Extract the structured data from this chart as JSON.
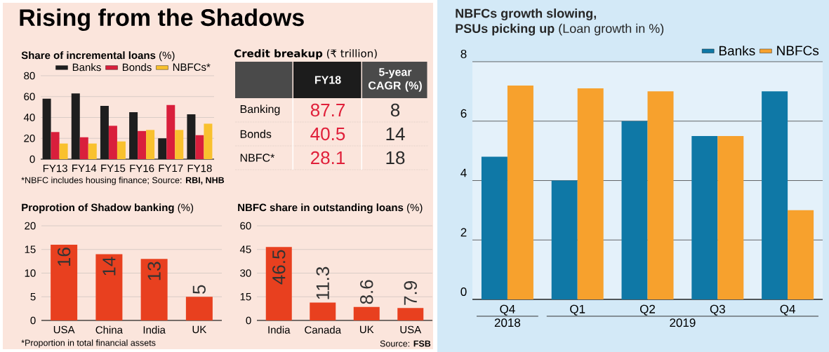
{
  "chart_data": [
    {
      "type": "bar",
      "title": "Rising from the Shadows",
      "subtitle": "**Share of incremental loans** (%)",
      "categories": [
        "FY13",
        "FY14",
        "FY15",
        "FY16",
        "FY17",
        "FY18"
      ],
      "series": [
        {
          "name": "Banks",
          "color": "#1e1e1e",
          "values": [
            58,
            63,
            51,
            45,
            20,
            43
          ]
        },
        {
          "name": "Bonds",
          "color": "#d91f3c",
          "values": [
            26,
            21,
            32,
            27,
            52,
            23
          ]
        },
        {
          "name": "NBFCs*",
          "color": "#f9c12e",
          "values": [
            15,
            15,
            17,
            28,
            28,
            34
          ]
        }
      ],
      "ylim": [
        0,
        80
      ],
      "yticks": [
        0,
        20,
        40,
        60,
        80
      ],
      "grid": "y",
      "legend": "top right",
      "annotations": [
        "*NBFC includes housing finance;  Source: **RBI, NHB**"
      ]
    },
    {
      "type": "other",
      "title": "**Credit breakup** (₹ trillion)",
      "categories": [
        "Banking",
        "Bonds",
        "NBFC*"
      ],
      "series": [
        {
          "name": "FY18",
          "values": [
            87.7,
            40.5,
            28.1
          ]
        },
        {
          "name": "5-year CAGR (%)",
          "values": [
            8,
            14,
            18
          ]
        }
      ],
      "data_labels": true
    },
    {
      "type": "bar",
      "title": "**Proprotion of Shadow banking** (%)",
      "categories": [
        "USA",
        "China",
        "India",
        "UK"
      ],
      "color": "#e8401f",
      "values": [
        16,
        14,
        13,
        5
      ],
      "ylim": [
        0,
        20
      ],
      "yticks": [
        0,
        5,
        10,
        15,
        20
      ],
      "grid": "y",
      "data_labels": true,
      "annotations": [
        "*Proportion in total financial assets"
      ]
    },
    {
      "type": "bar",
      "title": "**NBFC share in outstanding loans** (%)",
      "categories": [
        "India",
        "Canada",
        "UK",
        "USA"
      ],
      "color": "#e8401f",
      "values": [
        46.5,
        11.3,
        8.6,
        7.9
      ],
      "ylim": [
        0,
        60
      ],
      "yticks": [
        0,
        15,
        30,
        45,
        60
      ],
      "grid": "y",
      "data_labels": true,
      "annotations": [
        "Source: **FSB**"
      ]
    },
    {
      "type": "bar",
      "title": "**NBFCs growth slowing, PSUs picking up** (Loan growth in %)",
      "categories": [
        "Q4",
        "Q1",
        "Q2",
        "Q3",
        "Q4"
      ],
      "series": [
        {
          "name": "Banks",
          "color": "#0f78a6",
          "values": [
            4.8,
            4.0,
            6.0,
            5.5,
            7.0
          ]
        },
        {
          "name": "NBFCs",
          "color": "#f7a12d",
          "values": [
            7.2,
            7.1,
            7.0,
            5.5,
            3.0
          ]
        }
      ],
      "ylim": [
        0,
        8
      ],
      "yticks": [
        0,
        2,
        4,
        6,
        8
      ],
      "grid": "y",
      "legend": "top right",
      "annotations": [
        "2018",
        "2019"
      ]
    }
  ]
}
